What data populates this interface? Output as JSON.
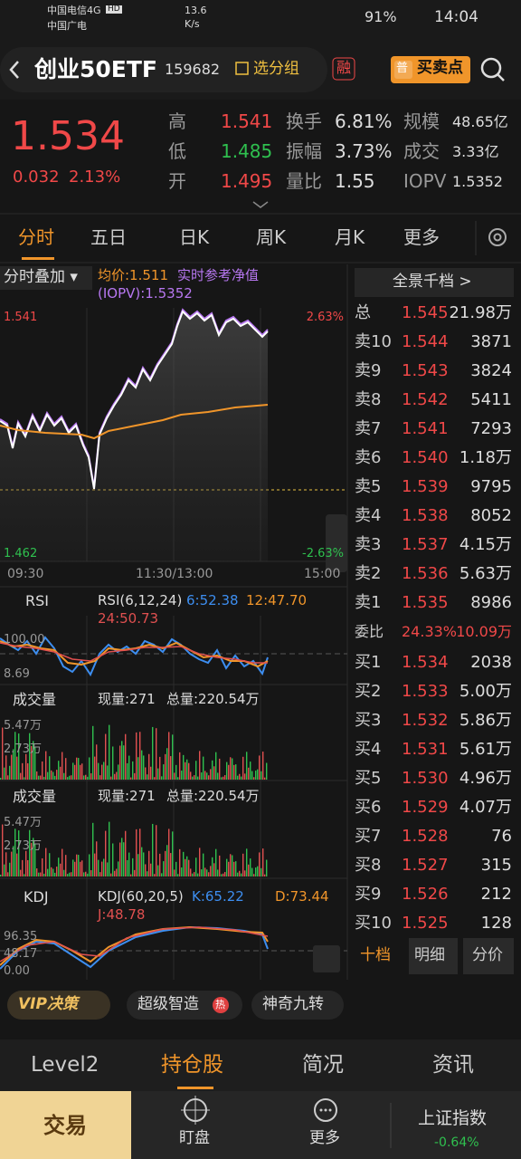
{
  "status_bar": {
    "carrier_1": "中国电信4G",
    "carrier_2": "中国广电",
    "hd": "HD",
    "net_speed": "13.6",
    "net_unit": "K/s",
    "battery": "91%",
    "time": "14:04"
  },
  "header": {
    "title": "创业50ETF",
    "code": "159682",
    "group_button": "选分组",
    "margin_badge": "融",
    "signal_badge": "普",
    "signal_button": "买卖点"
  },
  "quote": {
    "price": "1.534",
    "change": "0.032",
    "change_pct": "2.13%",
    "stats": [
      [
        {
          "label": "高",
          "value": "1.541",
          "color": "#f04848"
        },
        {
          "label": "换手",
          "value": "6.81%"
        },
        {
          "label": "规模",
          "value": "48.65亿"
        }
      ],
      [
        {
          "label": "低",
          "value": "1.485",
          "color": "#2fc04f"
        },
        {
          "label": "振幅",
          "value": "3.73%"
        },
        {
          "label": "成交",
          "value": "3.33亿"
        }
      ],
      [
        {
          "label": "开",
          "value": "1.495",
          "color": "#f04848"
        },
        {
          "label": "量比",
          "value": "1.55"
        },
        {
          "label": "IOPV",
          "value": "1.5352"
        }
      ]
    ]
  },
  "tabs": [
    "分时",
    "五日",
    "日K",
    "周K",
    "月K",
    "更多"
  ],
  "intraday": {
    "overlay_button": "分时叠加",
    "avg_price": "均价:1.511",
    "nav_label": "实时参考净值",
    "iopv": "(IOPV):1.5352",
    "y_top": "1.541",
    "pct_top": "2.63%",
    "y_bottom": "1.462",
    "pct_bottom": "-2.63%",
    "times": [
      "09:30",
      "11:30/13:00",
      "15:00"
    ]
  },
  "rsi": {
    "name": "RSI",
    "params": "RSI(6,12,24)",
    "rsi6": "6:52.38",
    "rsi12": "12:47.70",
    "rsi24": "24:50.73",
    "top": "100.00",
    "bottom": "8.69"
  },
  "volume_panels": [
    {
      "name": "成交量",
      "current": "现量:271",
      "total": "总量:220.54万",
      "top": "5.47万",
      "mid": "2.73万"
    },
    {
      "name": "成交量",
      "current": "现量:271",
      "total": "总量:220.54万",
      "top": "5.47万",
      "mid": "2.73万"
    }
  ],
  "kdj": {
    "name": "KDJ",
    "params": "KDJ(60,20,5)",
    "k": "K:65.22",
    "d": "D:73.44",
    "j": "J:48.78",
    "top": "96.35",
    "mid": "48.17",
    "bottom": "0.00"
  },
  "order_book": {
    "title": "全景千档 >",
    "total": {
      "label": "总",
      "price": "1.545",
      "volume": "21.98万"
    },
    "asks": [
      {
        "label": "卖10",
        "price": "1.544",
        "volume": "3871"
      },
      {
        "label": "卖9",
        "price": "1.543",
        "volume": "3824"
      },
      {
        "label": "卖8",
        "price": "1.542",
        "volume": "5411"
      },
      {
        "label": "卖7",
        "price": "1.541",
        "volume": "7293"
      },
      {
        "label": "卖6",
        "price": "1.540",
        "volume": "1.18万"
      },
      {
        "label": "卖5",
        "price": "1.539",
        "volume": "9795"
      },
      {
        "label": "卖4",
        "price": "1.538",
        "volume": "8052"
      },
      {
        "label": "卖3",
        "price": "1.537",
        "volume": "4.15万"
      },
      {
        "label": "卖2",
        "price": "1.536",
        "volume": "5.63万"
      },
      {
        "label": "卖1",
        "price": "1.535",
        "volume": "8986"
      }
    ],
    "ratio": {
      "label": "委比",
      "pct": "24.33%",
      "volume": "10.09万"
    },
    "bids": [
      {
        "label": "买1",
        "price": "1.534",
        "volume": "2038"
      },
      {
        "label": "买2",
        "price": "1.533",
        "volume": "5.00万"
      },
      {
        "label": "买3",
        "price": "1.532",
        "volume": "5.86万"
      },
      {
        "label": "买4",
        "price": "1.531",
        "volume": "5.61万"
      },
      {
        "label": "买5",
        "price": "1.530",
        "volume": "4.96万"
      },
      {
        "label": "买6",
        "price": "1.529",
        "volume": "4.07万"
      },
      {
        "label": "买7",
        "price": "1.528",
        "volume": "76"
      },
      {
        "label": "买8",
        "price": "1.527",
        "volume": "315"
      },
      {
        "label": "买9",
        "price": "1.526",
        "volume": "212"
      },
      {
        "label": "买10",
        "price": "1.525",
        "volume": "128"
      }
    ],
    "buttons": [
      "十档",
      "明细",
      "分价"
    ]
  },
  "feature_bar": {
    "vip": "VIP决策",
    "smart": "超级智造",
    "hot": "热",
    "nine": "神奇九转"
  },
  "bottom_tabs": [
    "Level2",
    "持仓股",
    "简况",
    "资讯"
  ],
  "nav": {
    "trade": "交易",
    "watch": "盯盘",
    "more": "更多",
    "index_name": "上证指数",
    "index_change": "-0.64%"
  }
}
